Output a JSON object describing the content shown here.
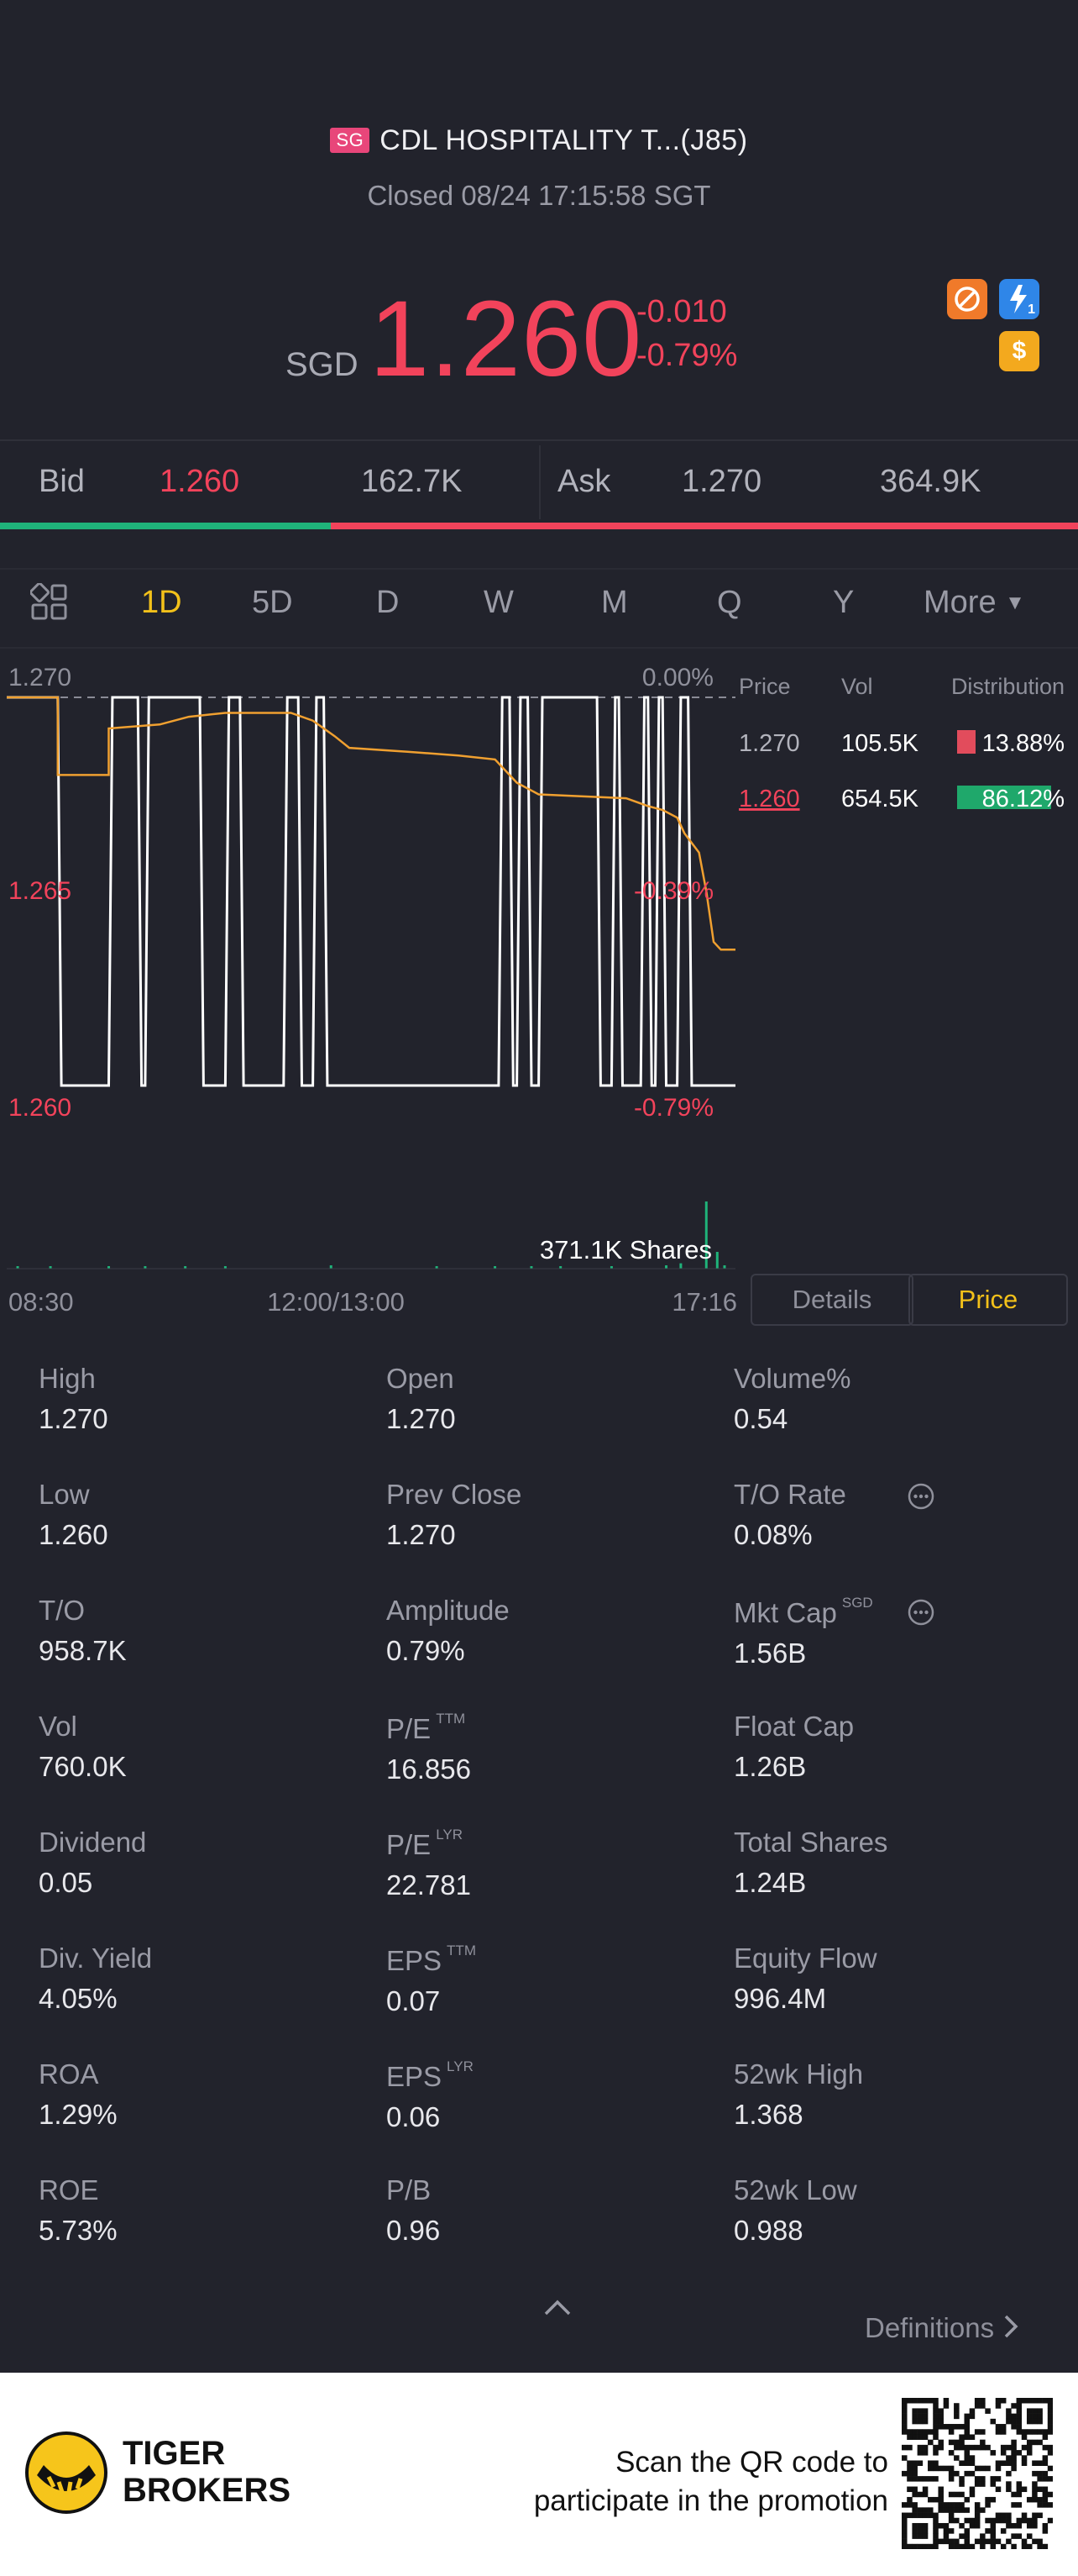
{
  "header": {
    "market_badge": "SG",
    "title": "CDL HOSPITALITY T...(J85)",
    "status": "Closed 08/24 17:15:58 SGT",
    "currency": "SGD",
    "price": "1.260",
    "change": "-0.010",
    "change_pct": "-0.79%",
    "icons": [
      "no-short-icon",
      "flash-level-icon",
      "dollar-icon"
    ],
    "flash_level": "1"
  },
  "quote": {
    "bid_label": "Bid",
    "bid_price": "1.260",
    "bid_size": "162.7K",
    "ask_label": "Ask",
    "ask_price": "1.270",
    "ask_size": "364.9K",
    "bid_share": 0.307
  },
  "tabs": [
    "1D",
    "5D",
    "D",
    "W",
    "M",
    "Q",
    "Y",
    "More"
  ],
  "active_tab": "1D",
  "chart_data": {
    "type": "line",
    "title": "",
    "y_labels": {
      "top": "1.270",
      "mid": "1.265",
      "bottom": "1.260"
    },
    "pct_labels": {
      "top": "0.00%",
      "mid": "-0.39%",
      "bottom": "-0.79%"
    },
    "ylim": [
      1.26,
      1.27
    ],
    "prev_close": 1.27,
    "x_ticks": [
      "08:30",
      "12:00/13:00",
      "17:16"
    ],
    "volume_label": "371.1K Shares",
    "price_series": [
      {
        "t": 0.0,
        "v": 1.27
      },
      {
        "t": 0.07,
        "v": 1.27
      },
      {
        "t": 0.07,
        "v": 1.268
      },
      {
        "t": 0.14,
        "v": 1.268
      },
      {
        "t": 0.14,
        "v": 1.2692
      },
      {
        "t": 0.21,
        "v": 1.2693
      },
      {
        "t": 0.25,
        "v": 1.2695
      },
      {
        "t": 0.3,
        "v": 1.2696
      },
      {
        "t": 0.35,
        "v": 1.2696
      },
      {
        "t": 0.39,
        "v": 1.2696
      },
      {
        "t": 0.42,
        "v": 1.2694
      },
      {
        "t": 0.45,
        "v": 1.269
      },
      {
        "t": 0.47,
        "v": 1.2687
      },
      {
        "t": 0.55,
        "v": 1.2686
      },
      {
        "t": 0.62,
        "v": 1.2685
      },
      {
        "t": 0.67,
        "v": 1.2684
      },
      {
        "t": 0.7,
        "v": 1.2678
      },
      {
        "t": 0.73,
        "v": 1.2675
      },
      {
        "t": 0.85,
        "v": 1.2674
      },
      {
        "t": 0.88,
        "v": 1.2672
      },
      {
        "t": 0.9,
        "v": 1.2671
      },
      {
        "t": 0.92,
        "v": 1.2669
      },
      {
        "t": 0.93,
        "v": 1.2665
      },
      {
        "t": 0.95,
        "v": 1.266
      },
      {
        "t": 0.96,
        "v": 1.265
      },
      {
        "t": 0.97,
        "v": 1.2637
      },
      {
        "t": 0.98,
        "v": 1.2635
      },
      {
        "t": 1.0,
        "v": 1.2635
      }
    ],
    "trade_series": [
      {
        "t": 0.0,
        "v": 1.27
      },
      {
        "t": 0.07,
        "v": 1.27
      },
      {
        "t": 0.075,
        "v": 1.26
      },
      {
        "t": 0.14,
        "v": 1.26
      },
      {
        "t": 0.145,
        "v": 1.27
      },
      {
        "t": 0.18,
        "v": 1.27
      },
      {
        "t": 0.185,
        "v": 1.26
      },
      {
        "t": 0.19,
        "v": 1.26
      },
      {
        "t": 0.195,
        "v": 1.27
      },
      {
        "t": 0.265,
        "v": 1.27
      },
      {
        "t": 0.27,
        "v": 1.26
      },
      {
        "t": 0.3,
        "v": 1.26
      },
      {
        "t": 0.305,
        "v": 1.27
      },
      {
        "t": 0.32,
        "v": 1.27
      },
      {
        "t": 0.325,
        "v": 1.26
      },
      {
        "t": 0.38,
        "v": 1.26
      },
      {
        "t": 0.385,
        "v": 1.27
      },
      {
        "t": 0.4,
        "v": 1.27
      },
      {
        "t": 0.405,
        "v": 1.26
      },
      {
        "t": 0.42,
        "v": 1.26
      },
      {
        "t": 0.425,
        "v": 1.27
      },
      {
        "t": 0.435,
        "v": 1.27
      },
      {
        "t": 0.44,
        "v": 1.26
      },
      {
        "t": 0.675,
        "v": 1.26
      },
      {
        "t": 0.68,
        "v": 1.27
      },
      {
        "t": 0.69,
        "v": 1.27
      },
      {
        "t": 0.695,
        "v": 1.26
      },
      {
        "t": 0.7,
        "v": 1.26
      },
      {
        "t": 0.705,
        "v": 1.27
      },
      {
        "t": 0.715,
        "v": 1.27
      },
      {
        "t": 0.72,
        "v": 1.26
      },
      {
        "t": 0.73,
        "v": 1.26
      },
      {
        "t": 0.735,
        "v": 1.27
      },
      {
        "t": 0.81,
        "v": 1.27
      },
      {
        "t": 0.815,
        "v": 1.26
      },
      {
        "t": 0.83,
        "v": 1.26
      },
      {
        "t": 0.835,
        "v": 1.27
      },
      {
        "t": 0.84,
        "v": 1.27
      },
      {
        "t": 0.845,
        "v": 1.26
      },
      {
        "t": 0.87,
        "v": 1.26
      },
      {
        "t": 0.875,
        "v": 1.27
      },
      {
        "t": 0.88,
        "v": 1.27
      },
      {
        "t": 0.885,
        "v": 1.26
      },
      {
        "t": 0.89,
        "v": 1.26
      },
      {
        "t": 0.895,
        "v": 1.27
      },
      {
        "t": 0.9,
        "v": 1.27
      },
      {
        "t": 0.905,
        "v": 1.26
      },
      {
        "t": 0.92,
        "v": 1.26
      },
      {
        "t": 0.925,
        "v": 1.27
      },
      {
        "t": 0.935,
        "v": 1.27
      },
      {
        "t": 0.94,
        "v": 1.26
      },
      {
        "t": 1.0,
        "v": 1.26
      }
    ],
    "volume_bars": [
      {
        "t": 0.015,
        "v": 0.03
      },
      {
        "t": 0.06,
        "v": 0.03
      },
      {
        "t": 0.14,
        "v": 0.02
      },
      {
        "t": 0.19,
        "v": 0.02
      },
      {
        "t": 0.245,
        "v": 0.02
      },
      {
        "t": 0.3,
        "v": 0.02
      },
      {
        "t": 0.445,
        "v": 0.05
      },
      {
        "t": 0.59,
        "v": 0.02
      },
      {
        "t": 0.67,
        "v": 0.02
      },
      {
        "t": 0.72,
        "v": 0.02
      },
      {
        "t": 0.76,
        "v": 0.02
      },
      {
        "t": 0.83,
        "v": 0.03
      },
      {
        "t": 0.905,
        "v": 0.05
      },
      {
        "t": 0.925,
        "v": 0.08
      },
      {
        "t": 0.96,
        "v": 1.0
      },
      {
        "t": 0.975,
        "v": 0.25
      },
      {
        "t": 0.985,
        "v": 0.05
      }
    ],
    "distribution": {
      "headers": [
        "Price",
        "Vol",
        "Distribution"
      ],
      "rows": [
        {
          "price": "1.270",
          "vol": "105.5K",
          "pct": "13.88%",
          "color": "#e24c5c"
        },
        {
          "price": "1.260",
          "vol": "654.5K",
          "pct": "86.12%",
          "color": "#1fa86b"
        }
      ]
    }
  },
  "chart_toggle": {
    "details": "Details",
    "price": "Price",
    "active": "Price"
  },
  "stats": [
    [
      {
        "label": "High",
        "value": "1.270"
      },
      {
        "label": "Open",
        "value": "1.270"
      },
      {
        "label": "Volume%",
        "value": "0.54"
      }
    ],
    [
      {
        "label": "Low",
        "value": "1.260"
      },
      {
        "label": "Prev Close",
        "value": "1.270"
      },
      {
        "label": "T/O Rate",
        "value": "0.08%",
        "info": true
      }
    ],
    [
      {
        "label": "T/O",
        "value": "958.7K"
      },
      {
        "label": "Amplitude",
        "value": "0.79%"
      },
      {
        "label": "Mkt Cap",
        "sup": "SGD",
        "value": "1.56B",
        "info": true
      }
    ],
    [
      {
        "label": "Vol",
        "value": "760.0K"
      },
      {
        "label": "P/E",
        "sup": "TTM",
        "value": "16.856"
      },
      {
        "label": "Float Cap",
        "value": "1.26B"
      }
    ],
    [
      {
        "label": "Dividend",
        "value": "0.05"
      },
      {
        "label": "P/E",
        "sup": "LYR",
        "value": "22.781"
      },
      {
        "label": "Total Shares",
        "value": "1.24B"
      }
    ],
    [
      {
        "label": "Div. Yield",
        "value": "4.05%"
      },
      {
        "label": "EPS",
        "sup": "TTM",
        "value": "0.07"
      },
      {
        "label": "Equity Flow",
        "value": "996.4M"
      }
    ],
    [
      {
        "label": "ROA",
        "value": "1.29%"
      },
      {
        "label": "EPS",
        "sup": "LYR",
        "value": "0.06"
      },
      {
        "label": "52wk High",
        "value": "1.368"
      }
    ],
    [
      {
        "label": "ROE",
        "value": "5.73%"
      },
      {
        "label": "P/B",
        "value": "0.96"
      },
      {
        "label": "52wk Low",
        "value": "0.988"
      }
    ]
  ],
  "definitions_link": "Definitions",
  "footer": {
    "brand_line1": "TIGER",
    "brand_line2": "BROKERS",
    "promo_line1": "Scan the QR code to",
    "promo_line2": "participate in the promotion"
  },
  "colors": {
    "background": "#22232c",
    "down": "#f2435b",
    "up": "#1fb37a",
    "accent": "#f3c11a",
    "line": "#f0a030"
  }
}
